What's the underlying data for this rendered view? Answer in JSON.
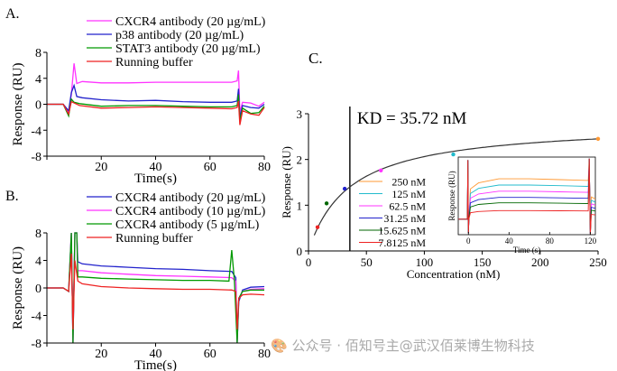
{
  "chart_data": [
    {
      "panel_label": "A.",
      "type": "line",
      "xlabel": "Time(s)",
      "ylabel": "Response (RU)",
      "xlim": [
        0,
        80
      ],
      "ylim": [
        -8,
        8
      ],
      "xticks": [
        0,
        20,
        40,
        60,
        80
      ],
      "yticks": [
        -8,
        -4,
        0,
        4,
        8
      ],
      "legend_position": "top-center",
      "series": [
        {
          "name": "CXCR4 antibody (20 µg/mL)",
          "color": "#ff33ff",
          "points": [
            [
              0,
              0
            ],
            [
              6,
              0
            ],
            [
              8,
              -1.2
            ],
            [
              9,
              1.5
            ],
            [
              10,
              6.3
            ],
            [
              11,
              3.2
            ],
            [
              13,
              3.5
            ],
            [
              20,
              3.3
            ],
            [
              30,
              3.3
            ],
            [
              40,
              3.4
            ],
            [
              50,
              3.4
            ],
            [
              60,
              3.4
            ],
            [
              68,
              3.4
            ],
            [
              70,
              3.6
            ],
            [
              70.5,
              5.2
            ],
            [
              71,
              -1.2
            ],
            [
              72,
              0.3
            ],
            [
              75,
              0.2
            ],
            [
              78,
              -0.3
            ],
            [
              80,
              0.3
            ]
          ]
        },
        {
          "name": "p38 antibody (20 µg/mL)",
          "color": "#2222cc",
          "points": [
            [
              0,
              0
            ],
            [
              6,
              0
            ],
            [
              8,
              -1
            ],
            [
              9,
              1.8
            ],
            [
              10,
              2.9
            ],
            [
              11,
              1.2
            ],
            [
              13,
              1
            ],
            [
              20,
              0.7
            ],
            [
              30,
              0.5
            ],
            [
              40,
              0.6
            ],
            [
              50,
              0.4
            ],
            [
              60,
              0.3
            ],
            [
              68,
              0.3
            ],
            [
              70,
              0.5
            ],
            [
              70.5,
              2.4
            ],
            [
              71,
              -2
            ],
            [
              72,
              -0.2
            ],
            [
              75,
              -0.5
            ],
            [
              78,
              -0.6
            ],
            [
              80,
              0
            ]
          ]
        },
        {
          "name": "STAT3 antibody (20 µg/mL)",
          "color": "#009900",
          "points": [
            [
              0,
              0
            ],
            [
              6,
              0
            ],
            [
              8,
              -1.8
            ],
            [
              9,
              0.8
            ],
            [
              10,
              0.3
            ],
            [
              12,
              0.1
            ],
            [
              20,
              -0.3
            ],
            [
              30,
              -0.2
            ],
            [
              40,
              -0.2
            ],
            [
              50,
              -0.3
            ],
            [
              60,
              -0.4
            ],
            [
              68,
              -0.4
            ],
            [
              70,
              -0.2
            ],
            [
              70.5,
              1.5
            ],
            [
              71,
              -2.6
            ],
            [
              72,
              -0.6
            ],
            [
              75,
              -1.4
            ],
            [
              78,
              -1.3
            ],
            [
              80,
              -0.3
            ]
          ]
        },
        {
          "name": "Running buffer",
          "color": "#ee2222",
          "points": [
            [
              0,
              0
            ],
            [
              6,
              0
            ],
            [
              8,
              -1.5
            ],
            [
              9,
              0.4
            ],
            [
              10,
              0.2
            ],
            [
              12,
              -0.2
            ],
            [
              20,
              -0.6
            ],
            [
              30,
              -0.5
            ],
            [
              40,
              -0.4
            ],
            [
              50,
              -0.5
            ],
            [
              60,
              -0.6
            ],
            [
              68,
              -0.7
            ],
            [
              70,
              -0.5
            ],
            [
              70.5,
              0.5
            ],
            [
              71,
              -3.2
            ],
            [
              72,
              -1
            ],
            [
              75,
              -1.5
            ],
            [
              78,
              -1.7
            ],
            [
              80,
              -0.5
            ]
          ]
        }
      ]
    },
    {
      "panel_label": "B.",
      "type": "line",
      "xlabel": "Time(s)",
      "ylabel": "Response (RU)",
      "xlim": [
        0,
        80
      ],
      "ylim": [
        -8,
        8
      ],
      "xticks": [
        0,
        20,
        40,
        60,
        80
      ],
      "yticks": [
        -8,
        -4,
        0,
        4,
        8
      ],
      "legend_position": "top-center",
      "series": [
        {
          "name": "CXCR4 antibody (20 µg/mL)",
          "color": "#2222cc",
          "points": [
            [
              0,
              0
            ],
            [
              6,
              0
            ],
            [
              8,
              -0.5
            ],
            [
              9,
              8
            ],
            [
              9.6,
              -8
            ],
            [
              10.3,
              8
            ],
            [
              11,
              8
            ],
            [
              11.4,
              3.8
            ],
            [
              13,
              3.5
            ],
            [
              20,
              3.2
            ],
            [
              30,
              3
            ],
            [
              40,
              2.8
            ],
            [
              50,
              2.7
            ],
            [
              60,
              2.5
            ],
            [
              68,
              2.4
            ],
            [
              69.5,
              1.5
            ],
            [
              70,
              -8
            ],
            [
              70.6,
              -2
            ],
            [
              72,
              -0.3
            ],
            [
              75,
              0.1
            ],
            [
              80,
              0.2
            ]
          ]
        },
        {
          "name": "CXCR4 antibody (10 µg/mL)",
          "color": "#ff33ff",
          "points": [
            [
              0,
              0
            ],
            [
              6,
              0
            ],
            [
              8,
              -0.5
            ],
            [
              9,
              8
            ],
            [
              9.6,
              -8
            ],
            [
              10.3,
              8
            ],
            [
              11,
              8
            ],
            [
              11.4,
              2.5
            ],
            [
              13,
              2.5
            ],
            [
              20,
              2.2
            ],
            [
              30,
              2
            ],
            [
              40,
              1.8
            ],
            [
              50,
              1.7
            ],
            [
              60,
              1.6
            ],
            [
              68,
              1.5
            ],
            [
              69.5,
              1
            ],
            [
              70,
              -8
            ],
            [
              70.6,
              -1.5
            ],
            [
              72,
              -0.5
            ],
            [
              75,
              -0.2
            ],
            [
              80,
              -0.1
            ]
          ]
        },
        {
          "name": "CXCR4 antibody (5 µg/mL)",
          "color": "#009900",
          "points": [
            [
              0,
              0
            ],
            [
              6,
              0
            ],
            [
              8,
              -0.5
            ],
            [
              9,
              8
            ],
            [
              9.6,
              -8
            ],
            [
              10.3,
              8
            ],
            [
              11,
              8
            ],
            [
              11.4,
              1.6
            ],
            [
              13,
              1.6
            ],
            [
              20,
              1.4
            ],
            [
              30,
              1.3
            ],
            [
              40,
              1.2
            ],
            [
              50,
              1.1
            ],
            [
              60,
              1.1
            ],
            [
              67,
              1
            ],
            [
              68,
              5.5
            ],
            [
              69,
              1
            ],
            [
              70,
              -8
            ],
            [
              70.6,
              -1.5
            ],
            [
              72,
              -0.5
            ],
            [
              75,
              -0.3
            ],
            [
              80,
              -0.3
            ]
          ]
        },
        {
          "name": "Running buffer",
          "color": "#ee2222",
          "points": [
            [
              0,
              0
            ],
            [
              6,
              0
            ],
            [
              8,
              -0.5
            ],
            [
              9,
              5
            ],
            [
              9.6,
              -6
            ],
            [
              10.3,
              4
            ],
            [
              11.4,
              1
            ],
            [
              13,
              0.6
            ],
            [
              20,
              0.2
            ],
            [
              30,
              0
            ],
            [
              40,
              -0.1
            ],
            [
              50,
              -0.2
            ],
            [
              60,
              -0.2
            ],
            [
              68,
              -0.3
            ],
            [
              69.5,
              -0.5
            ],
            [
              70,
              -6
            ],
            [
              70.6,
              -1.5
            ],
            [
              72,
              -1
            ],
            [
              75,
              -0.9
            ],
            [
              80,
              -1
            ]
          ]
        }
      ]
    },
    {
      "panel_label": "C.",
      "type": "scatter",
      "annotation": "KD = 35.72 nM",
      "xlabel": "Concentration (nM)",
      "ylabel": "Response (RU)",
      "xlim": [
        0,
        250
      ],
      "ylim": [
        0,
        3
      ],
      "xticks": [
        0,
        50,
        100,
        150,
        200,
        250
      ],
      "yticks": [
        0,
        1,
        2,
        3
      ],
      "kd_line_x": 35.72,
      "fit": {
        "model": "steady-state affinity",
        "Rmax": 2.8,
        "KD": 35.72,
        "color": "#333333"
      },
      "points": [
        {
          "x": 7.8125,
          "y": 0.52,
          "color": "#ee2222"
        },
        {
          "x": 15.625,
          "y": 1.04,
          "color": "#006600"
        },
        {
          "x": 31.25,
          "y": 1.36,
          "color": "#2222cc"
        },
        {
          "x": 62.5,
          "y": 1.76,
          "color": "#ff33ff"
        },
        {
          "x": 125,
          "y": 2.11,
          "color": "#22bbcc"
        },
        {
          "x": 250,
          "y": 2.45,
          "color": "#ff9933"
        }
      ],
      "inset": {
        "type": "line",
        "xlabel": "Time (s)",
        "ylabel": "Response (RU)",
        "xlim": [
          -10,
          125
        ],
        "ylim": [
          -1,
          4
        ],
        "xticks": [
          0,
          40,
          80,
          120
        ],
        "series": [
          {
            "name": "250 nM",
            "color": "#ff9933",
            "plateau": 2.6
          },
          {
            "name": "125 nM",
            "color": "#22bbcc",
            "plateau": 2.2
          },
          {
            "name": "62.5 nM",
            "color": "#ff33ff",
            "plateau": 1.8
          },
          {
            "name": "31.25 nM",
            "color": "#2222cc",
            "plateau": 1.4
          },
          {
            "name": "15.625 nM",
            "color": "#006600",
            "plateau": 1.05
          },
          {
            "name": "7.8125 nM",
            "color": "#ee2222",
            "plateau": 0.55
          }
        ]
      }
    }
  ],
  "watermark": "🎨 公众号 · 佰知号主@武汉佰莱博生物科技"
}
